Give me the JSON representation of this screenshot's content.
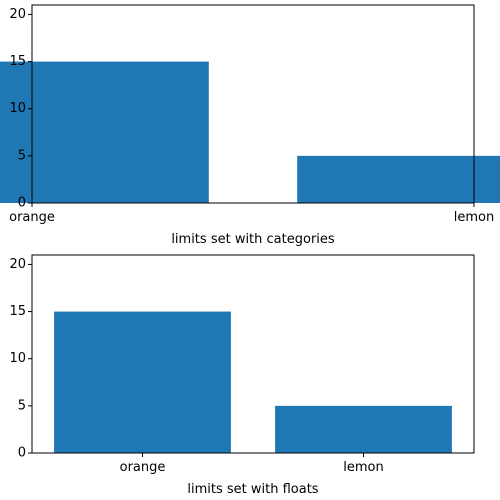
{
  "chart_data": [
    {
      "type": "bar",
      "categories": [
        "orange",
        "lemon"
      ],
      "values": [
        15,
        5
      ],
      "xlabel": "limits set with categories",
      "ylabel": "",
      "ylim": [
        0,
        21
      ],
      "xlim_description": "limits set with categories (first to last category)",
      "y_ticks": [
        0,
        5,
        10,
        15,
        20
      ],
      "bar_color": "#1f77b4",
      "grid": false
    },
    {
      "type": "bar",
      "categories": [
        "orange",
        "lemon"
      ],
      "values": [
        15,
        5
      ],
      "xlabel": "limits set with floats",
      "ylabel": "",
      "ylim": [
        0,
        21
      ],
      "xlim": [
        -0.5,
        1.5
      ],
      "y_ticks": [
        0,
        5,
        10,
        15,
        20
      ],
      "bar_color": "#1f77b4",
      "grid": false
    }
  ]
}
